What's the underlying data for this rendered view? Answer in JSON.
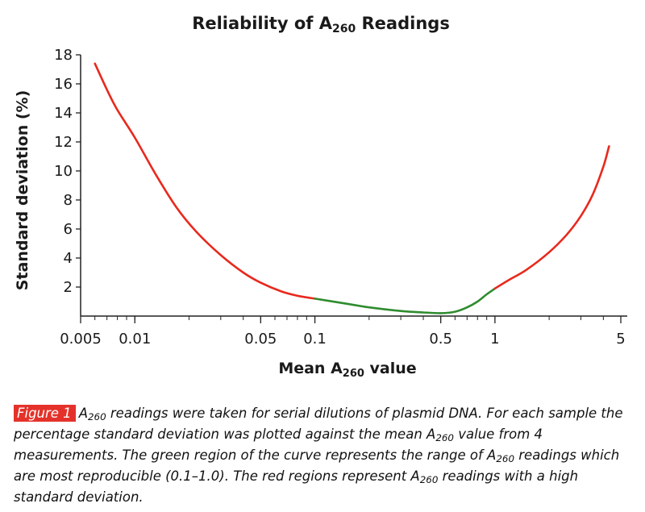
{
  "chart_data": {
    "type": "line",
    "title_main": "Reliability of A",
    "title_sub": "260",
    "title_end": "Readings",
    "xlabel_main": "Mean A",
    "xlabel_sub": "260",
    "xlabel_end": "value",
    "ylabel": "Standard deviation (%)",
    "x_scale": "log",
    "xlim": [
      0.005,
      5
    ],
    "ylim": [
      0,
      18
    ],
    "x_ticks": [
      0.005,
      0.01,
      0.05,
      0.1,
      0.5,
      1,
      5
    ],
    "x_tick_labels": [
      "0.005",
      "0.01",
      "0.05",
      "0.1",
      "0.5",
      "1",
      "5"
    ],
    "y_ticks": [
      2,
      4,
      6,
      8,
      10,
      12,
      14,
      16,
      18
    ],
    "y_tick_labels": [
      "2",
      "4",
      "6",
      "8",
      "10",
      "12",
      "14",
      "16",
      "18"
    ],
    "grid": false,
    "colors": {
      "red_region": "#e8291d",
      "green_region": "#2f8c2f",
      "axis": "#222222"
    },
    "series": [
      {
        "region": "high standard deviation (red)",
        "color": "#e8291d",
        "x": [
          0.006,
          0.007,
          0.008,
          0.01,
          0.013,
          0.017,
          0.022,
          0.03,
          0.04,
          0.05,
          0.065,
          0.08,
          0.1
        ],
        "y": [
          17.4,
          15.6,
          14.2,
          12.3,
          9.8,
          7.5,
          5.8,
          4.2,
          3.0,
          2.3,
          1.7,
          1.4,
          1.2
        ]
      },
      {
        "region": "most reproducible (green)",
        "color": "#2f8c2f",
        "x": [
          0.1,
          0.15,
          0.2,
          0.3,
          0.4,
          0.5,
          0.6,
          0.7,
          0.8,
          0.9,
          1.0
        ],
        "y": [
          1.2,
          0.85,
          0.6,
          0.35,
          0.25,
          0.2,
          0.3,
          0.6,
          1.0,
          1.5,
          1.9
        ]
      },
      {
        "region": "high standard deviation (red)",
        "color": "#e8291d",
        "x": [
          1.0,
          1.2,
          1.5,
          2.0,
          2.5,
          3.0,
          3.5,
          4.0,
          4.3
        ],
        "y": [
          1.9,
          2.5,
          3.2,
          4.4,
          5.6,
          6.9,
          8.4,
          10.3,
          11.7
        ]
      }
    ]
  },
  "caption": {
    "badge": "Figure 1",
    "a": "A",
    "a_sub": "260",
    "text1": " readings were taken for serial dilutions of plasmid DNA. For each sample the percentage standard deviation was plotted against the mean A",
    "sub2": "260",
    "text2": " value from 4 measurements. The green region of the curve represents the range of A",
    "sub3": "260",
    "text3": " readings which are most reproducible (0.1–1.0). The red regions represent A",
    "sub4": "260",
    "text4": " readings with a high standard deviation."
  }
}
